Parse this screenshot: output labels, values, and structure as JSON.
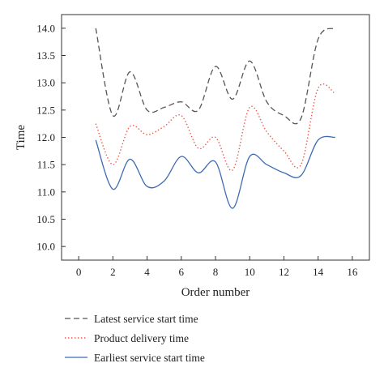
{
  "chart_data": {
    "type": "line",
    "title": "",
    "xlabel": "Order number",
    "ylabel": "Time",
    "xlim": [
      -1,
      17
    ],
    "ylim": [
      9.75,
      14.25
    ],
    "xticks": [
      0,
      2,
      4,
      6,
      8,
      10,
      12,
      14,
      16
    ],
    "yticks": [
      "10.0",
      "10.5",
      "11.0",
      "11.5",
      "12.0",
      "12.5",
      "13.0",
      "13.5",
      "14.0"
    ],
    "grid": false,
    "legend_position": "bottom",
    "series": [
      {
        "name": "Latest service start time",
        "color": "#555555",
        "style": "dashed",
        "x": [
          1,
          2,
          3,
          4,
          5,
          6,
          7,
          8,
          9,
          10,
          11,
          12,
          13,
          14,
          15
        ],
        "y": [
          14.0,
          12.4,
          13.2,
          12.5,
          12.55,
          12.65,
          12.5,
          13.3,
          12.7,
          13.4,
          12.65,
          12.4,
          12.35,
          13.8,
          14.0
        ]
      },
      {
        "name": "Product delivery time",
        "color": "#e8564a",
        "style": "dotted",
        "x": [
          1,
          2,
          3,
          4,
          5,
          6,
          7,
          8,
          9,
          10,
          11,
          12,
          13,
          14,
          15
        ],
        "y": [
          12.25,
          11.5,
          12.2,
          12.05,
          12.2,
          12.4,
          11.8,
          12.0,
          11.4,
          12.55,
          12.1,
          11.75,
          11.5,
          12.9,
          12.8
        ]
      },
      {
        "name": "Earliest service start time",
        "color": "#3d6bb3",
        "style": "solid",
        "x": [
          1,
          2,
          3,
          4,
          5,
          6,
          7,
          8,
          9,
          10,
          11,
          12,
          13,
          14,
          15
        ],
        "y": [
          11.95,
          11.05,
          11.6,
          11.1,
          11.2,
          11.65,
          11.35,
          11.55,
          10.7,
          11.65,
          11.5,
          11.35,
          11.3,
          11.95,
          12.0
        ]
      }
    ]
  }
}
